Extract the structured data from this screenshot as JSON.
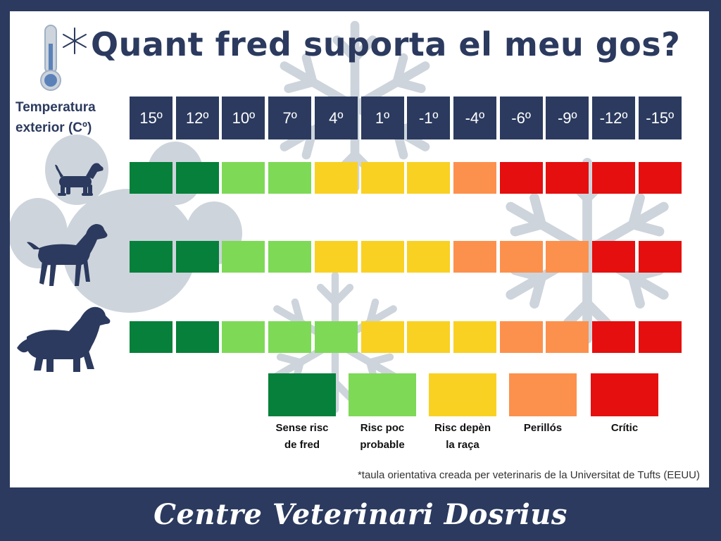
{
  "header": {
    "title": "Quant fred suporta el meu gos?",
    "temperature_label_line1": "Temperatura",
    "temperature_label_line2": "exterior (Cº)"
  },
  "temperatures": [
    "15º",
    "12º",
    "10º",
    "7º",
    "4º",
    "1º",
    "-1º",
    "-4º",
    "-6º",
    "-9º",
    "-12º",
    "-15º"
  ],
  "colors": {
    "navy": "#2b3a5e",
    "sense_risc": "#06803a",
    "risc_poc": "#7ed957",
    "risc_raca": "#f9d123",
    "perillos": "#fc914d",
    "critic": "#e40f0e",
    "decor": "#cdd4dc"
  },
  "dog_rows": [
    {
      "dog": "small-dog",
      "levels": [
        "sense_risc",
        "sense_risc",
        "risc_poc",
        "risc_poc",
        "risc_raca",
        "risc_raca",
        "risc_raca",
        "perillos",
        "critic",
        "critic",
        "critic",
        "critic"
      ]
    },
    {
      "dog": "medium-dog",
      "levels": [
        "sense_risc",
        "sense_risc",
        "risc_poc",
        "risc_poc",
        "risc_raca",
        "risc_raca",
        "risc_raca",
        "perillos",
        "perillos",
        "perillos",
        "critic",
        "critic"
      ]
    },
    {
      "dog": "large-dog",
      "levels": [
        "sense_risc",
        "sense_risc",
        "risc_poc",
        "risc_poc",
        "risc_poc",
        "risc_raca",
        "risc_raca",
        "risc_raca",
        "perillos",
        "perillos",
        "critic",
        "critic"
      ]
    }
  ],
  "legend": [
    {
      "key": "sense_risc",
      "line1": "Sense risc",
      "line2": "de fred"
    },
    {
      "key": "risc_poc",
      "line1": "Risc poc",
      "line2": "probable"
    },
    {
      "key": "risc_raca",
      "line1": "Risc depèn",
      "line2": "la raça"
    },
    {
      "key": "perillos",
      "line1": "Perillós",
      "line2": ""
    },
    {
      "key": "critic",
      "line1": "Crític",
      "line2": ""
    }
  ],
  "note": "*taula orientativa creada per veterinaris de la Universitat de Tufts (EEUU)",
  "footer": "Centre Veterinari Dosrius",
  "icons": [
    "thermometer-snow-icon",
    "snowflake-icon",
    "paw-icon",
    "small-dog-icon",
    "medium-dog-icon",
    "large-dog-icon"
  ]
}
